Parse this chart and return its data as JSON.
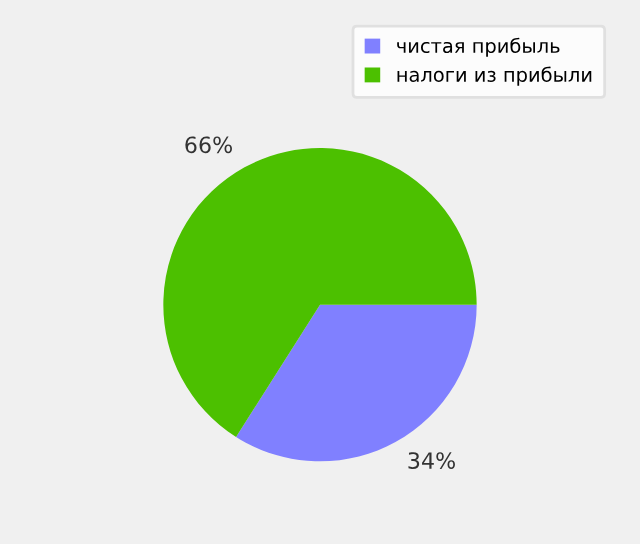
{
  "chart_data": {
    "type": "pie",
    "categories": [
      "чистая прибыль",
      "налоги из прибыли"
    ],
    "values": [
      34,
      66
    ],
    "colors": [
      "#8080ff",
      "#4cc000"
    ],
    "value_labels": [
      "34%",
      "66%"
    ],
    "legend": "top right"
  }
}
